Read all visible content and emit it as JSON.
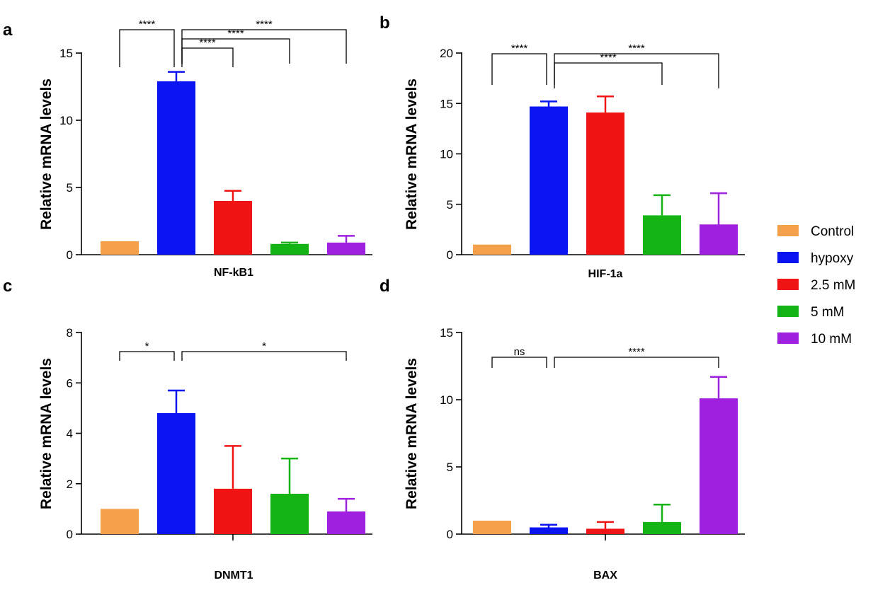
{
  "legend": [
    {
      "label": "Control",
      "color": "#F5A04B"
    },
    {
      "label": "hypoxy",
      "color": "#0A14F0"
    },
    {
      "label": "2.5 mM",
      "color": "#F01414"
    },
    {
      "label": "5 mM",
      "color": "#14B414"
    },
    {
      "label": "10 mM",
      "color": "#A020E0"
    }
  ],
  "chart_data": [
    {
      "type": "bar",
      "panel": "a",
      "xlabel": "NF-kB1",
      "ylabel": "Relative mRNA levels",
      "ylim": [
        0,
        15
      ],
      "yticks": [
        0,
        5,
        10,
        15
      ],
      "categories": [
        "Control",
        "hypoxy",
        "2.5 mM",
        "5 mM",
        "10 mM"
      ],
      "values": [
        1.0,
        12.9,
        4.0,
        0.8,
        0.9
      ],
      "errors": [
        0,
        0.7,
        0.75,
        0.1,
        0.5
      ],
      "significance": [
        {
          "from": 0,
          "to": 1,
          "label": "****"
        },
        {
          "from": 1,
          "to": 2,
          "label": "****"
        },
        {
          "from": 1,
          "to": 3,
          "label": "****"
        },
        {
          "from": 1,
          "to": 4,
          "label": "****"
        }
      ]
    },
    {
      "type": "bar",
      "panel": "b",
      "xlabel": "HIF-1a",
      "ylabel": "Relative mRNA levels",
      "ylim": [
        0,
        20
      ],
      "yticks": [
        0,
        5,
        10,
        15,
        20
      ],
      "categories": [
        "Control",
        "hypoxy",
        "2.5 mM",
        "5 mM",
        "10 mM"
      ],
      "values": [
        1.0,
        14.7,
        14.1,
        3.9,
        3.0
      ],
      "errors": [
        0,
        0.5,
        1.6,
        2.0,
        3.1
      ],
      "significance": [
        {
          "from": 0,
          "to": 1,
          "label": "****"
        },
        {
          "from": 1,
          "to": 3,
          "label": "****"
        },
        {
          "from": 1,
          "to": 4,
          "label": "****"
        }
      ]
    },
    {
      "type": "bar",
      "panel": "c",
      "xlabel": "DNMT1",
      "ylabel": "Relative mRNA levels",
      "ylim": [
        0,
        8
      ],
      "yticks": [
        0,
        2,
        4,
        6,
        8
      ],
      "categories": [
        "Control",
        "hypoxy",
        "2.5 mM",
        "5 mM",
        "10 mM"
      ],
      "values": [
        1.0,
        4.8,
        1.8,
        1.6,
        0.9
      ],
      "errors": [
        0,
        0.9,
        1.7,
        1.4,
        0.5
      ],
      "significance": [
        {
          "from": 0,
          "to": 1,
          "label": "*"
        },
        {
          "from": 1,
          "to": 4,
          "label": "*"
        }
      ]
    },
    {
      "type": "bar",
      "panel": "d",
      "xlabel": "BAX",
      "ylabel": "Relative mRNA levels",
      "ylim": [
        0,
        15
      ],
      "yticks": [
        0,
        5,
        10,
        15
      ],
      "categories": [
        "Control",
        "hypoxy",
        "2.5 mM",
        "5 mM",
        "10 mM"
      ],
      "values": [
        1.0,
        0.5,
        0.4,
        0.9,
        10.1
      ],
      "errors": [
        0,
        0.2,
        0.5,
        1.3,
        1.6
      ],
      "significance": [
        {
          "from": 0,
          "to": 1,
          "label": "ns"
        },
        {
          "from": 1,
          "to": 4,
          "label": "****"
        }
      ]
    }
  ]
}
